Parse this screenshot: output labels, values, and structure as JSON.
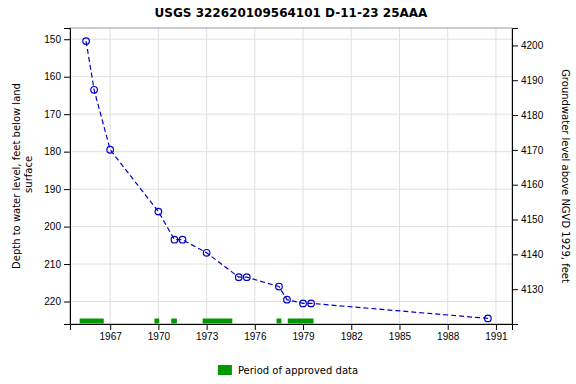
{
  "chart_data": {
    "type": "line",
    "title": "USGS 322620109564101 D-11-23 25AAA",
    "ylabel": "Depth to water level, feet below land\n surface",
    "y2label": "Groundwater level above NGVD 1929, feet",
    "x": [
      1965.5,
      1966.0,
      1967.0,
      1970.0,
      1971.0,
      1971.5,
      1973.0,
      1975.0,
      1975.5,
      1977.5,
      1978.0,
      1979.0,
      1979.5,
      1990.5
    ],
    "series": [
      {
        "values": [
          150.5,
          163.5,
          179.5,
          196.0,
          203.5,
          203.5,
          207.0,
          213.5,
          213.5,
          216.0,
          219.5,
          220.5,
          220.5,
          224.5
        ],
        "color": "#0000cc",
        "marker": "circle",
        "line_style": "dashed"
      }
    ],
    "spans": {
      "name": "Period of approved data",
      "color": "#009900",
      "values": [
        [
          1965.1,
          1966.6
        ],
        [
          1969.75,
          1970.05
        ],
        [
          1970.8,
          1971.15
        ],
        [
          1972.75,
          1974.6
        ],
        [
          1977.35,
          1977.65
        ],
        [
          1978.05,
          1979.65
        ]
      ]
    },
    "xlim": [
      1964.5,
      1992.0
    ],
    "xticks": [
      1967,
      1970,
      1973,
      1976,
      1979,
      1982,
      1985,
      1988,
      1991
    ],
    "ylim": [
      226,
      147
    ],
    "yticks": [
      150,
      160,
      170,
      180,
      190,
      200,
      210,
      220
    ],
    "y2lim": [
      4120,
      4205
    ],
    "y2ticks": [
      4130,
      4140,
      4150,
      4160,
      4170,
      4180,
      4190,
      4200
    ],
    "grid": true,
    "legend": "bottom"
  }
}
